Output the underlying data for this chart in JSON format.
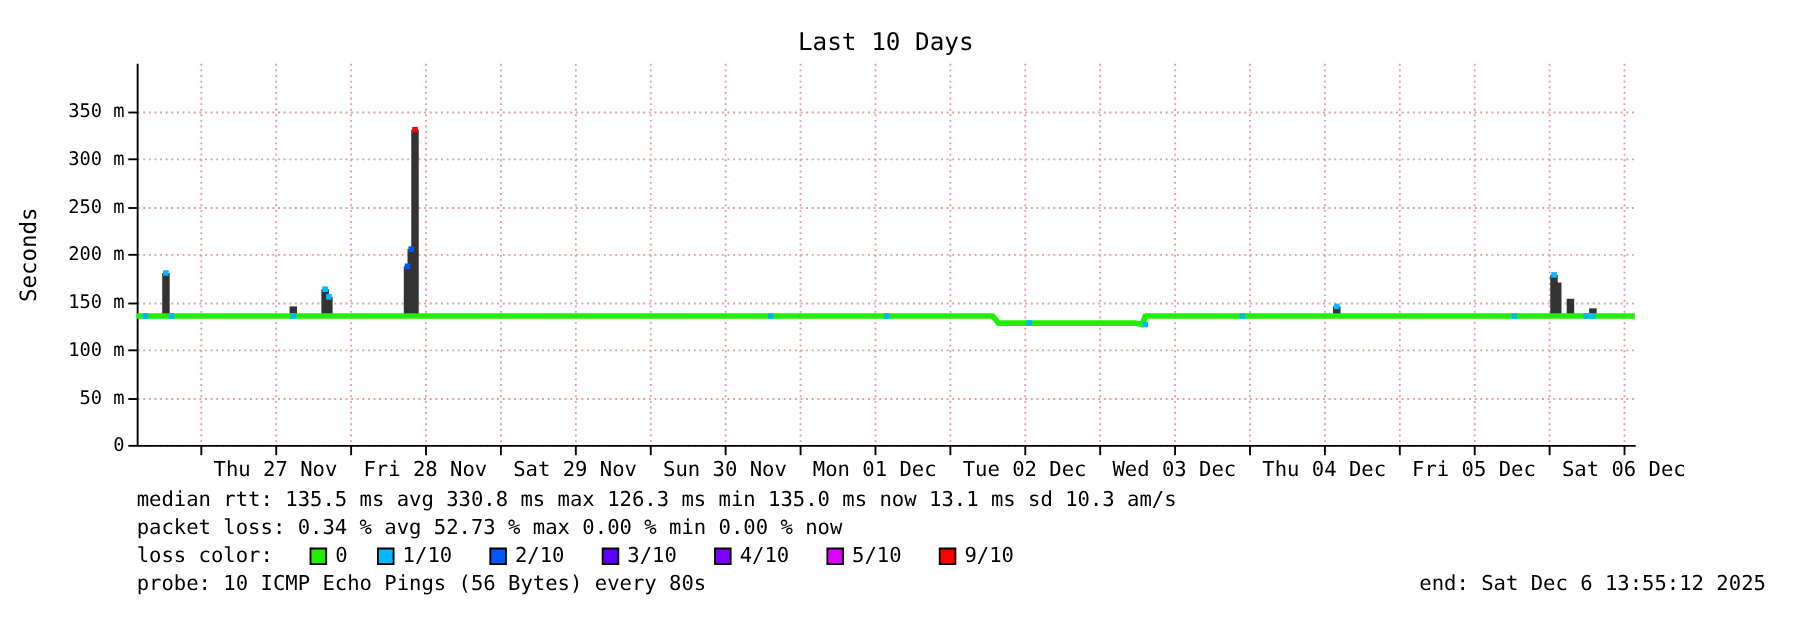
{
  "chart_data": {
    "type": "line",
    "title": "Last 10 Days",
    "ylabel": "Seconds",
    "xlim": [
      "2025-11-26T13:55",
      "2025-12-06T13:55"
    ],
    "xticks": [
      {
        "value": "2025-11-27T00:00",
        "label": null
      },
      {
        "value": "2025-11-27T12:00",
        "label": "Thu 27 Nov"
      },
      {
        "value": "2025-11-28T00:00",
        "label": null
      },
      {
        "value": "2025-11-28T12:00",
        "label": "Fri 28 Nov"
      },
      {
        "value": "2025-11-29T00:00",
        "label": null
      },
      {
        "value": "2025-11-29T12:00",
        "label": "Sat 29 Nov"
      },
      {
        "value": "2025-11-30T00:00",
        "label": null
      },
      {
        "value": "2025-11-30T12:00",
        "label": "Sun 30 Nov"
      },
      {
        "value": "2025-12-01T00:00",
        "label": null
      },
      {
        "value": "2025-12-01T12:00",
        "label": "Mon 01 Dec"
      },
      {
        "value": "2025-12-02T00:00",
        "label": null
      },
      {
        "value": "2025-12-02T12:00",
        "label": "Tue 02 Dec"
      },
      {
        "value": "2025-12-03T00:00",
        "label": null
      },
      {
        "value": "2025-12-03T12:00",
        "label": "Wed 03 Dec"
      },
      {
        "value": "2025-12-04T00:00",
        "label": null
      },
      {
        "value": "2025-12-04T12:00",
        "label": "Thu 04 Dec"
      },
      {
        "value": "2025-12-05T00:00",
        "label": null
      },
      {
        "value": "2025-12-05T12:00",
        "label": "Fri 05 Dec"
      },
      {
        "value": "2025-12-06T00:00",
        "label": null
      },
      {
        "value": "2025-12-06T12:00",
        "label": "Sat 06 Dec"
      }
    ],
    "ylim": [
      0,
      400
    ],
    "yticks": [
      0,
      {
        "value": 50,
        "label": "50 m"
      },
      {
        "value": 100,
        "label": "100 m"
      },
      {
        "value": 150,
        "label": "150 m"
      },
      {
        "value": 200,
        "label": "200 m"
      },
      {
        "value": 250,
        "label": "250 m"
      },
      {
        "value": 300,
        "label": "300 m"
      },
      {
        "value": 350,
        "label": "350 m"
      }
    ],
    "grid": true,
    "legend": "bottom",
    "legend_title": "loss color:",
    "series": [
      {
        "type": "bar",
        "color": "#333333",
        "x": [
          "2025-11-26T18:36",
          "2025-11-27T15:00",
          "2025-11-27T20:06",
          "2025-11-27T20:42",
          "2025-11-28T09:18",
          "2025-11-28T09:54",
          "2025-11-28T10:30",
          "2025-12-04T14:10",
          "2025-12-06T00:58",
          "2025-12-06T01:34",
          "2025-12-06T03:36",
          "2025-12-06T07:12"
        ],
        "base": [
          135,
          135,
          135,
          135,
          135,
          135,
          135,
          135,
          135,
          135,
          135,
          135
        ],
        "values": [
          45,
          10,
          28,
          20,
          52,
          70,
          195,
          10,
          43,
          35,
          18,
          8
        ]
      },
      {
        "name": "0",
        "color": "#22ee00",
        "x": [
          "2025-11-26T13:55",
          "2025-12-02T07:00",
          "2025-12-02T08:00",
          "2025-12-03T06:00",
          "2025-12-03T07:00",
          "2025-12-03T07:30",
          "2025-12-06T13:55"
        ],
        "values": [
          135,
          135,
          127.5,
          127.5,
          126,
          135,
          135
        ]
      },
      {
        "name": "1/10",
        "type": "scatter",
        "color": "#00b8ff",
        "x": [
          "2025-11-26T15:18",
          "2025-11-26T18:36",
          "2025-11-26T19:30",
          "2025-11-27T15:00",
          "2025-11-27T20:06",
          "2025-11-27T20:42",
          "2025-11-30T19:30",
          "2025-12-01T14:06",
          "2025-12-02T12:54",
          "2025-12-03T07:30",
          "2025-12-03T23:03",
          "2025-12-04T14:10",
          "2025-12-05T18:36",
          "2025-12-06T00:58",
          "2025-12-06T06:10",
          "2025-12-06T07:12"
        ],
        "values": [
          135,
          180,
          135,
          135,
          163,
          155,
          135,
          135,
          127.5,
          126,
          135,
          145,
          135,
          178,
          135,
          135
        ]
      },
      {
        "name": "2/10",
        "type": "scatter",
        "color": "#0059ff",
        "x": [
          "2025-11-28T09:18",
          "2025-11-28T09:54"
        ],
        "values": [
          187,
          205
        ]
      },
      {
        "name": "3/10",
        "type": "scatter",
        "color": "#5e00ff"
      },
      {
        "name": "4/10",
        "type": "scatter",
        "color": "#7e00ff"
      },
      {
        "name": "5/10",
        "type": "scatter",
        "color": "#dd00ff"
      },
      {
        "name": "9/10",
        "type": "scatter",
        "color": "#ff0000",
        "x": [
          "2025-11-28T10:30"
        ],
        "values": [
          330
        ]
      }
    ],
    "annotations": [
      "median rtt:  135.5 ms avg  330.8 ms max  126.3 ms min  135.0 ms now  13.1 ms sd  10.3   am/s",
      "packet loss: 0.34 % avg  52.73 % max  0.00 % min  0.00 % now",
      "probe:       10 ICMP Echo Pings (56 Bytes) every 80s",
      "end: Sat Dec  6 13:55:12 2025"
    ]
  }
}
